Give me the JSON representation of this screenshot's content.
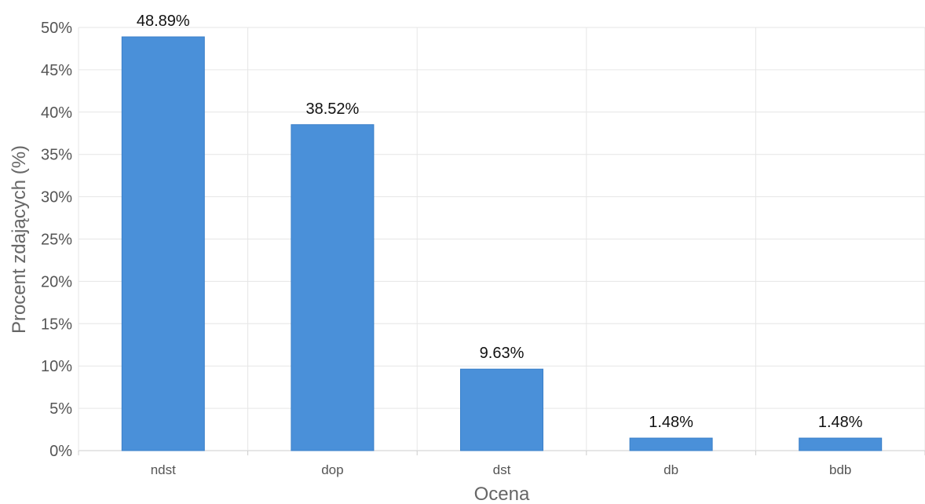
{
  "chart_data": {
    "type": "bar",
    "title": "",
    "xlabel": "Ocena",
    "ylabel": "Procent zdających (%)",
    "categories": [
      "ndst",
      "dop",
      "dst",
      "db",
      "bdb"
    ],
    "values": [
      48.89,
      38.52,
      9.63,
      1.48,
      1.48
    ],
    "data_labels": [
      "48.89%",
      "38.52%",
      "9.63%",
      "1.48%",
      "1.48%"
    ],
    "ylim": [
      0,
      50
    ],
    "y_ticks": [
      0,
      5,
      10,
      15,
      20,
      25,
      30,
      35,
      40,
      45,
      50
    ],
    "y_tick_labels": [
      "0%",
      "5%",
      "10%",
      "15%",
      "20%",
      "25%",
      "30%",
      "35%",
      "40%",
      "45%",
      "50%"
    ],
    "grid": true,
    "legend": "none",
    "bar_color": "#4a90d9"
  }
}
